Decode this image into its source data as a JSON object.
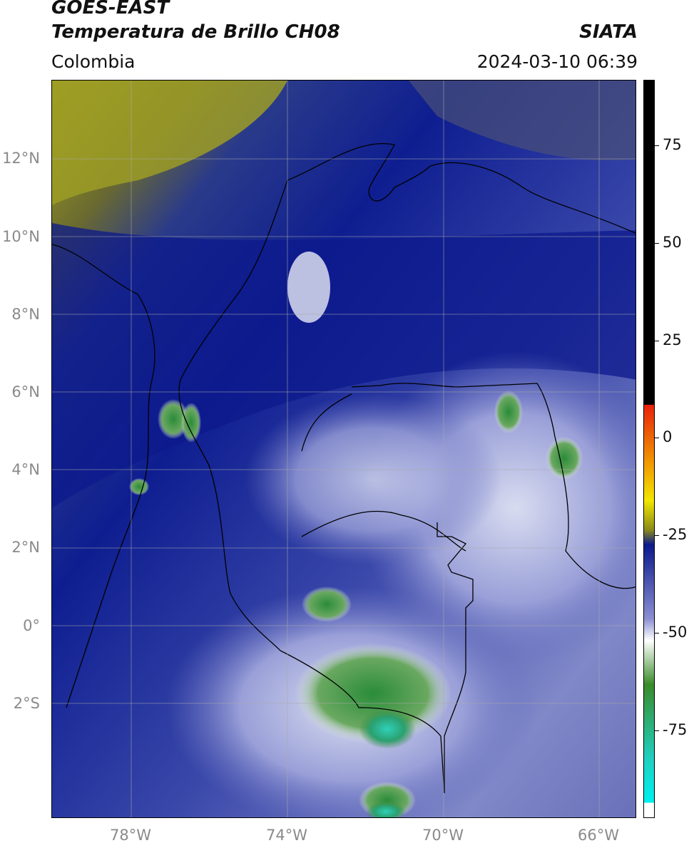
{
  "header": {
    "line1": "GOES-EAST",
    "line2": "Temperatura de Brillo CH08",
    "organization": "SIATA",
    "region": "Colombia",
    "datetime": "2024-03-10 06:39"
  },
  "map": {
    "lat_labels": [
      "12°N",
      "10°N",
      "8°N",
      "6°N",
      "4°N",
      "2°N",
      "0°",
      "2°S"
    ],
    "lon_labels": [
      "78°W",
      "74°W",
      "70°W",
      "66°W"
    ]
  },
  "colorbar": {
    "ticks": [
      "75",
      "50",
      "25",
      "0",
      "-25",
      "-50",
      "-75"
    ],
    "colors": {
      "black": "#000000",
      "red": "#e8220c",
      "orange": "#f29a00",
      "yellow": "#f2e600",
      "olive": "#8a8a1a",
      "navy": "#0c1a8c",
      "lavender": "#8a8ed2",
      "white": "#ffffff",
      "green": "#3a8c2a",
      "teal": "#1fd0c0",
      "cyan": "#00f0f0"
    }
  }
}
